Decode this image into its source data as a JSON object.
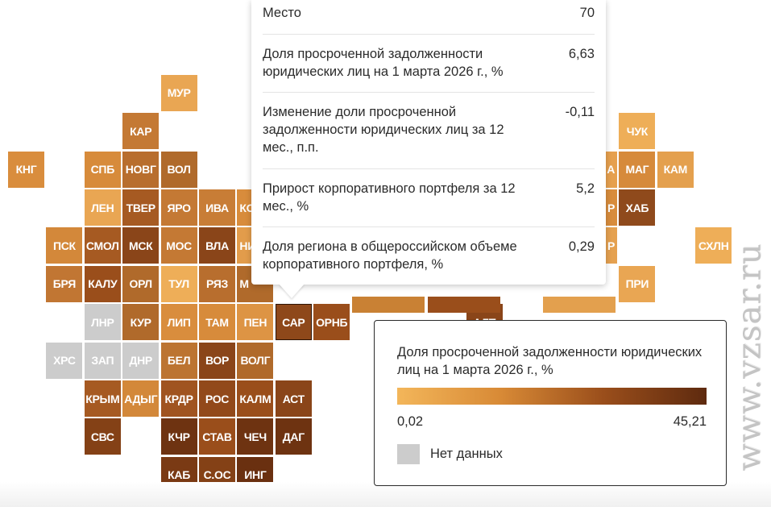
{
  "tiles": {
    "mur": {
      "label": "МУР",
      "color": "#e9a653"
    },
    "kar": {
      "label": "КАР",
      "color": "#c47934"
    },
    "chuk": {
      "label": "ЧУК",
      "color": "#eeae58"
    },
    "kng": {
      "label": "КНГ",
      "color": "#d98d3d"
    },
    "spb": {
      "label": "СПБ",
      "color": "#d78b3b"
    },
    "novg": {
      "label": "НОВГ",
      "color": "#b86e2e"
    },
    "vol": {
      "label": "ВОЛ",
      "color": "#b06a2b"
    },
    "a_part": {
      "label": "А",
      "color": "#e6a04e"
    },
    "mag": {
      "label": "МАГ",
      "color": "#d68a3b"
    },
    "kam": {
      "label": "КАМ",
      "color": "#e4a04e"
    },
    "len": {
      "label": "ЛЕН",
      "color": "#e9a653"
    },
    "tver": {
      "label": "ТВЕР",
      "color": "#a65a22"
    },
    "yaro": {
      "label": "ЯРО",
      "color": "#c47934"
    },
    "iva": {
      "label": "ИВА",
      "color": "#c87d36"
    },
    "ko_part": {
      "label": "КО",
      "color": "#d88c3c"
    },
    "r_part": {
      "label": "Р",
      "color": "#d88c3c"
    },
    "hab": {
      "label": "ХАБ",
      "color": "#8f4a1c"
    },
    "psk": {
      "label": "ПСК",
      "color": "#d3883a"
    },
    "smol": {
      "label": "СМОЛ",
      "color": "#a65a22"
    },
    "msk": {
      "label": "МСК",
      "color": "#8a4519"
    },
    "mos": {
      "label": "МОС",
      "color": "#c47934"
    },
    "vla": {
      "label": "ВЛА",
      "color": "#8a4519"
    },
    "ni_part": {
      "label": "НИ",
      "color": "#e29c4b"
    },
    "p_part": {
      "label": "Р",
      "color": "#e5a150"
    },
    "skhln": {
      "label": "СХЛН",
      "color": "#eeae58"
    },
    "brya": {
      "label": "БРЯ",
      "color": "#c17633"
    },
    "kalu": {
      "label": "КАЛУ",
      "color": "#9a4e1b"
    },
    "orl": {
      "label": "ОРЛ",
      "color": "#b06a2b"
    },
    "tul": {
      "label": "ТУЛ",
      "color": "#eeae58"
    },
    "rya": {
      "label": "РЯЗ",
      "color": "#b86e2e"
    },
    "m_part": {
      "label": "М",
      "color": "#b06a2b"
    },
    "pri": {
      "label": "ПРИ",
      "color": "#e9a653"
    },
    "lnr": {
      "label": "ЛНР",
      "color": "#cccccc"
    },
    "kur": {
      "label": "КУР",
      "color": "#b06a2b"
    },
    "lip": {
      "label": "ЛИП",
      "color": "#d98d3d"
    },
    "tam": {
      "label": "ТАМ",
      "color": "#d78b3b"
    },
    "pen": {
      "label": "ПЕН",
      "color": "#dd9444"
    },
    "sar": {
      "label": "САР",
      "color": "#8e481a"
    },
    "ornb": {
      "label": "ОРНБ",
      "color": "#9a4e1b"
    },
    "alt": {
      "label": "АЛТ",
      "color": "#8a4519"
    },
    "hrs": {
      "label": "ХРС",
      "color": "#cccccc"
    },
    "zap": {
      "label": "ЗАП",
      "color": "#cccccc"
    },
    "dnr": {
      "label": "ДНР",
      "color": "#cccccc"
    },
    "bel": {
      "label": "БЕЛ",
      "color": "#bc7431"
    },
    "vor": {
      "label": "ВОР",
      "color": "#8a4519"
    },
    "volg": {
      "label": "ВОЛГ",
      "color": "#b06a2b"
    },
    "krym": {
      "label": "КРЫМ",
      "color": "#a65a22"
    },
    "adyg": {
      "label": "АДЫГ",
      "color": "#d3883a"
    },
    "krdr": {
      "label": "КРДР",
      "color": "#a05420"
    },
    "ros": {
      "label": "РОС",
      "color": "#92491a"
    },
    "kalm": {
      "label": "КАЛМ",
      "color": "#9a4e1b"
    },
    "ast": {
      "label": "АСТ",
      "color": "#8a4519"
    },
    "svs": {
      "label": "СВС",
      "color": "#844116"
    },
    "kchr": {
      "label": "КЧР",
      "color": "#6e3311"
    },
    "stav": {
      "label": "СТАВ",
      "color": "#9a4e1b"
    },
    "chech": {
      "label": "ЧЕЧ",
      "color": "#6e3311"
    },
    "dag": {
      "label": "ДАГ",
      "color": "#6e3311"
    },
    "kab": {
      "label": "КАБ",
      "color": "#7a3a14"
    },
    "sos": {
      "label": "С.ОС",
      "color": "#844116"
    },
    "ing": {
      "label": "ИНГ",
      "color": "#6a3010"
    }
  },
  "hidden_strip": {
    "color_a": "#c98134",
    "color_b": "#9a4e1b",
    "color_c": "#e3a04e"
  },
  "tooltip": {
    "rows": [
      {
        "label": "Место",
        "value": "70"
      },
      {
        "label": "Доля просроченной задолженности юридических лиц на 1 марта 2026 г., %",
        "value": "6,63"
      },
      {
        "label": "Изменение доли просроченной задолженности юридических лиц за 12 мес., п.п.",
        "value": "-0,11"
      },
      {
        "label": "Прирост корпоративного портфеля за 12 мес., %",
        "value": "5,2"
      },
      {
        "label": "Доля региона в общероссийском объеме корпоративного портфеля, %",
        "value": "0,29"
      }
    ]
  },
  "legend": {
    "title": "Доля просроченной задолженности юридических лиц на 1 марта 2026 г., %",
    "min": "0,02",
    "max": "45,21",
    "no_data": "Нет данных",
    "no_data_color": "#cccccc",
    "gradient": [
      "#f3b65a",
      "#d88a36",
      "#9a4e1b",
      "#5e2a0f"
    ]
  },
  "watermark": "www.vzsar.ru"
}
